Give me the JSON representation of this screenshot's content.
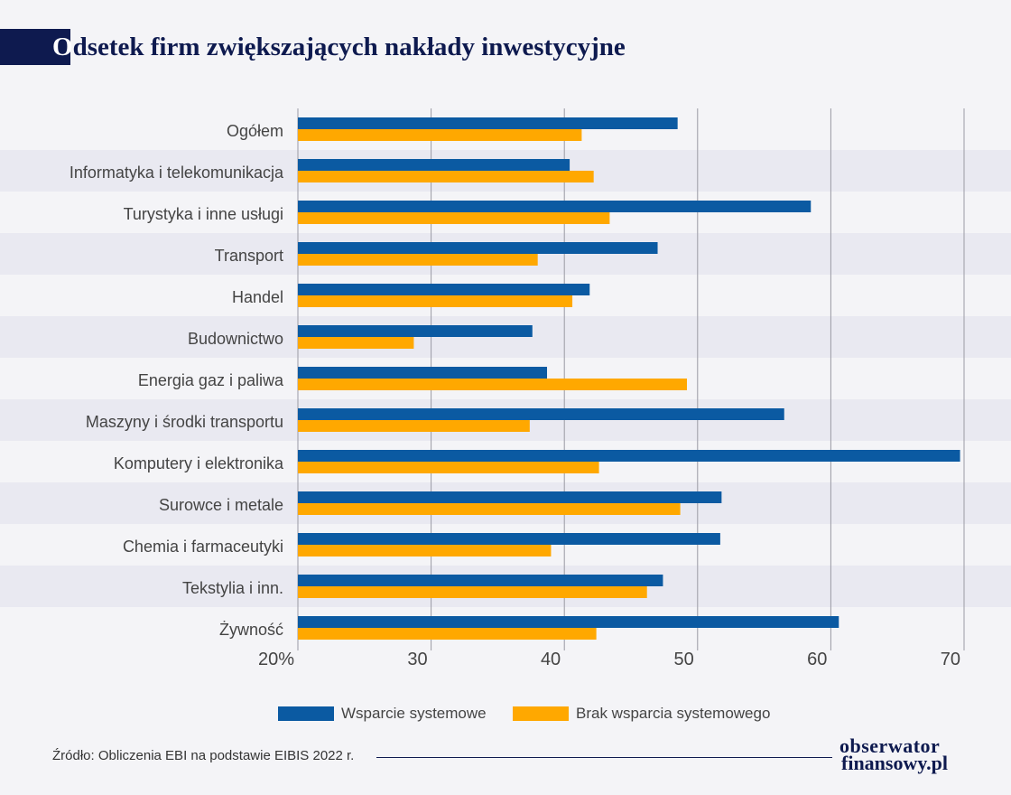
{
  "title_first": "O",
  "title_rest": "dsetek firm zwiększających nakłady inwestycyjne",
  "chart_data": {
    "type": "bar",
    "orientation": "horizontal",
    "categories": [
      "Ogółem",
      "Informatyka i telekomunikacja",
      "Turystyka i inne usługi",
      "Transport",
      "Handel",
      "Budownictwo",
      "Energia gaz i paliwa",
      "Maszyny i środki transportu",
      "Komputery i elektronika",
      "Surowce i metale",
      "Chemia i farmaceutyki",
      "Tekstylia i inn.",
      "Żywność"
    ],
    "series": [
      {
        "name": "Wsparcie systemowe",
        "color": "#0b5aa2",
        "values": [
          48.5,
          40.4,
          58.5,
          47.0,
          41.9,
          37.6,
          38.7,
          56.5,
          69.7,
          51.8,
          51.7,
          47.4,
          60.6
        ]
      },
      {
        "name": "Brak wsparcia systemowego",
        "color": "#ffa800",
        "values": [
          41.3,
          42.2,
          43.4,
          38.0,
          40.6,
          28.7,
          49.2,
          37.4,
          42.6,
          48.7,
          39.0,
          46.2,
          42.4
        ]
      }
    ],
    "xlim": [
      20,
      70
    ],
    "xticks": [
      "20%",
      "30",
      "40",
      "50",
      "60",
      "70"
    ],
    "grid": true,
    "legend_position": "bottom"
  },
  "source": "Źródło: Obliczenia EBI na podstawie EIBIS 2022 r.",
  "logo": {
    "line1": "obserwator",
    "line2": "finansowy.pl"
  }
}
